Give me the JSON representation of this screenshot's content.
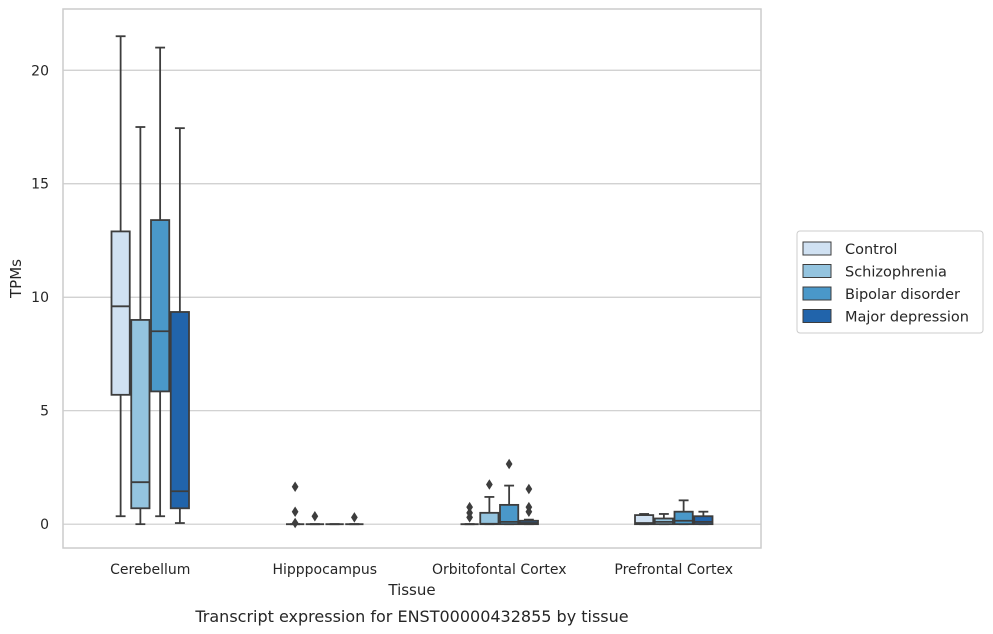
{
  "chart_data": {
    "type": "boxplot",
    "caption": "Transcript expression for ENST00000432855 by tissue",
    "xlabel": "Tissue",
    "ylabel": "TPMs",
    "ylim": [
      -1.05,
      22.7
    ],
    "yticks": [
      0,
      5,
      10,
      15,
      20
    ],
    "grid": true,
    "legend_position": "right",
    "categories": [
      "Cerebellum",
      "Hipppocampus",
      "Orbitofontal Cortex",
      "Prefrontal Cortex"
    ],
    "series": [
      {
        "name": "Control",
        "color": "#d0e1f2",
        "boxes": [
          {
            "whislo": 0.35,
            "q1": 5.7,
            "med": 9.6,
            "q3": 12.9,
            "whishi": 21.5,
            "fliers": []
          },
          {
            "whislo": 0,
            "q1": 0,
            "med": 0,
            "q3": 0,
            "whishi": 0,
            "fliers": [
              0.05,
              0.55,
              1.65
            ]
          },
          {
            "whislo": 0,
            "q1": 0,
            "med": 0,
            "q3": 0,
            "whishi": 0,
            "fliers": [
              0.3,
              0.5,
              0.75
            ]
          },
          {
            "whislo": 0,
            "q1": 0,
            "med": 0.05,
            "q3": 0.4,
            "whishi": 0.45,
            "fliers": []
          }
        ]
      },
      {
        "name": "Schizophrenia",
        "color": "#94c4df",
        "boxes": [
          {
            "whislo": 0.0,
            "q1": 0.7,
            "med": 1.85,
            "q3": 9.0,
            "whishi": 17.5,
            "fliers": []
          },
          {
            "whislo": 0,
            "q1": 0,
            "med": 0,
            "q3": 0,
            "whishi": 0,
            "fliers": [
              0.35
            ]
          },
          {
            "whislo": 0,
            "q1": 0,
            "med": 0.02,
            "q3": 0.5,
            "whishi": 1.2,
            "fliers": [
              1.75
            ]
          },
          {
            "whislo": 0,
            "q1": 0,
            "med": 0.1,
            "q3": 0.25,
            "whishi": 0.45,
            "fliers": []
          }
        ]
      },
      {
        "name": "Bipolar disorder",
        "color": "#4a98c9",
        "boxes": [
          {
            "whislo": 0.35,
            "q1": 5.85,
            "med": 8.5,
            "q3": 13.4,
            "whishi": 21.0,
            "fliers": []
          },
          {
            "whislo": 0,
            "q1": 0,
            "med": 0,
            "q3": 0,
            "whishi": 0,
            "fliers": []
          },
          {
            "whislo": 0,
            "q1": 0,
            "med": 0.1,
            "q3": 0.85,
            "whishi": 1.7,
            "fliers": [
              2.65
            ]
          },
          {
            "whislo": 0,
            "q1": 0,
            "med": 0.15,
            "q3": 0.55,
            "whishi": 1.05,
            "fliers": []
          }
        ]
      },
      {
        "name": "Major depression",
        "color": "#2164ab",
        "boxes": [
          {
            "whislo": 0.05,
            "q1": 0.7,
            "med": 1.45,
            "q3": 9.35,
            "whishi": 17.45,
            "fliers": []
          },
          {
            "whislo": 0,
            "q1": 0,
            "med": 0,
            "q3": 0,
            "whishi": 0,
            "fliers": [
              0.3
            ]
          },
          {
            "whislo": 0,
            "q1": 0,
            "med": 0.05,
            "q3": 0.15,
            "whishi": 0.2,
            "fliers": [
              0.55,
              0.75,
              1.55
            ]
          },
          {
            "whislo": 0,
            "q1": 0,
            "med": 0.1,
            "q3": 0.35,
            "whishi": 0.55,
            "fliers": []
          }
        ]
      }
    ]
  }
}
